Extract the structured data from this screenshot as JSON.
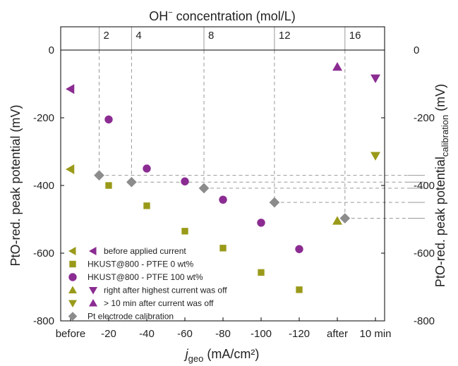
{
  "chart_data": {
    "type": "scatter",
    "top_axis": {
      "label_main": "OH",
      "label_sup": "−",
      "label_rest": " concentration (mol/L)",
      "ticks": [
        "2",
        "4",
        "8",
        "12",
        "16"
      ],
      "tick_x": [
        -15,
        -32,
        -70,
        -107,
        -144
      ]
    },
    "x_axis": {
      "label_italic": "j",
      "label_sub": "geo",
      "label_rest": " (mA/cm²)",
      "categories": [
        "before",
        "-20",
        "-40",
        "-60",
        "-80",
        "-100",
        "-120",
        "after",
        "10 min"
      ],
      "category_x": [
        0,
        -20,
        -40,
        -60,
        -80,
        -100,
        -120,
        -140,
        -160
      ]
    },
    "y_axis": {
      "label": "PtO-red. peak potential (mV)",
      "range": [
        -800,
        0
      ],
      "ticks": [
        0,
        -200,
        -400,
        -600,
        -800
      ]
    },
    "y2_axis": {
      "label_main": "PtO-red. peak potential",
      "label_sub": "calibration",
      "label_rest": " (mV)",
      "ticks": [
        "0",
        "-200",
        "-400",
        "-600",
        "-800"
      ]
    },
    "colors": {
      "olive": "#9a9a1a",
      "purple": "#8b2c92",
      "gray": "#8c8c8c",
      "line": "#9a9a9a"
    },
    "series": [
      {
        "name": "HKUST@800 - PTFE 0 wt%",
        "marker": "square",
        "color": "olive",
        "x": [
          -20,
          -40,
          -60,
          -80,
          -100,
          -120
        ],
        "y": [
          -400,
          -460,
          -535,
          -585,
          -657,
          -708
        ]
      },
      {
        "name": "HKUST@800 - PTFE 100 wt%",
        "marker": "circle",
        "color": "purple",
        "x": [
          -20,
          -40,
          -60,
          -80,
          -100,
          -120
        ],
        "y": [
          -205,
          -350,
          -388,
          -442,
          -510,
          -588
        ]
      },
      {
        "name": "before applied current",
        "marker": "tri-left",
        "color": "purple",
        "x": [
          0
        ],
        "y": [
          -115
        ]
      },
      {
        "name": "before applied current",
        "marker": "tri-left",
        "color": "olive",
        "x": [
          0
        ],
        "y": [
          -352
        ]
      },
      {
        "name": "right after highest current was off",
        "marker": "tri-up",
        "color": "olive",
        "x": [
          -140
        ],
        "y": [
          -505
        ]
      },
      {
        "name": "right after highest current was off",
        "marker": "tri-down",
        "color": "purple",
        "x": [
          -160
        ],
        "y": [
          -83
        ]
      },
      {
        "name": "> 10 min after current was off",
        "marker": "tri-up",
        "color": "purple",
        "x": [
          -140
        ],
        "y": [
          -50
        ]
      },
      {
        "name": "> 10 min after current was off",
        "marker": "tri-down",
        "color": "olive",
        "x": [
          -160
        ],
        "y": [
          -312
        ]
      },
      {
        "name": "Pt electrode calibration",
        "marker": "diamond",
        "color": "gray",
        "x": [
          -15,
          -32,
          -70,
          -107,
          -144
        ],
        "y": [
          -370,
          -390,
          -408,
          -450,
          -497
        ]
      }
    ],
    "legend": [
      {
        "label": "before applied current",
        "markers": [
          [
            "tri-left",
            "olive"
          ],
          [
            "tri-left",
            "purple"
          ]
        ]
      },
      {
        "label": "HKUST@800 - PTFE 0 wt%",
        "markers": [
          [
            "square",
            "olive"
          ]
        ]
      },
      {
        "label": "HKUST@800 - PTFE 100 wt%",
        "markers": [
          [
            "circle",
            "purple"
          ]
        ]
      },
      {
        "label": "right after highest current was off",
        "markers": [
          [
            "tri-up",
            "olive"
          ],
          [
            "tri-down",
            "purple"
          ]
        ]
      },
      {
        "label": "> 10 min after current was off",
        "markers": [
          [
            "tri-down",
            "olive"
          ],
          [
            "tri-up",
            "purple"
          ]
        ]
      },
      {
        "label": "Pt electrode calibration",
        "markers": [
          [
            "diamond",
            "gray"
          ]
        ]
      }
    ],
    "legend_position": "bottom-left"
  }
}
